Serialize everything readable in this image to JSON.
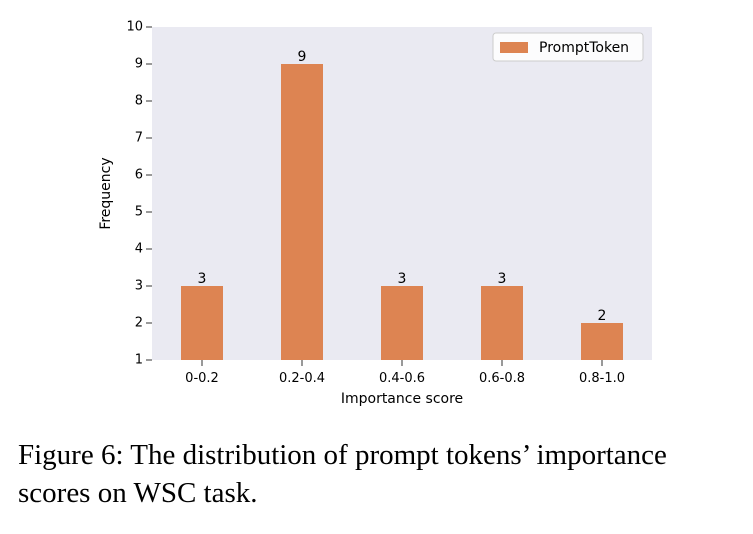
{
  "figure": {
    "caption": "Figure 6: The distribution of prompt tokens’ importance scores on WSC task."
  },
  "colors": {
    "plot_background": "#eaeaf2",
    "bar": "#dd8452",
    "axis_text": "#000000"
  },
  "chart_data": {
    "type": "bar",
    "categories": [
      "0-0.2",
      "0.2-0.4",
      "0.4-0.6",
      "0.6-0.8",
      "0.8-1.0"
    ],
    "series": [
      {
        "name": "PromptToken",
        "values": [
          3,
          9,
          3,
          3,
          2
        ]
      }
    ],
    "data_labels": [
      "3",
      "9",
      "3",
      "3",
      "2"
    ],
    "xlabel": "Importance score",
    "ylabel": "Frequency",
    "ylim": [
      1,
      10
    ],
    "yticks": [
      1,
      2,
      3,
      4,
      5,
      6,
      7,
      8,
      9,
      10
    ],
    "grid": false,
    "legend": "top-right"
  }
}
